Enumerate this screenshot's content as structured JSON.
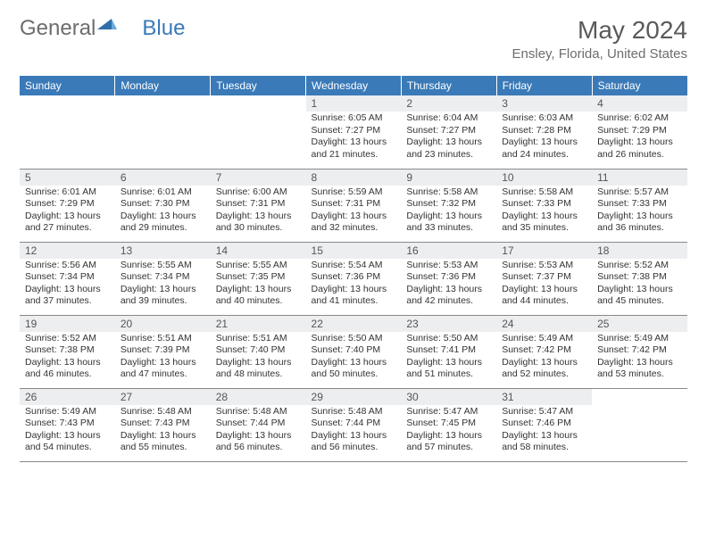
{
  "logo": {
    "text1": "General",
    "text2": "Blue"
  },
  "title": "May 2024",
  "location": "Ensley, Florida, United States",
  "colors": {
    "header_bg": "#3a7ab8",
    "header_text": "#ffffff",
    "daynum_bg": "#eceef0",
    "body_text": "#333333",
    "border": "#888888",
    "logo_grey": "#6d6d6d",
    "logo_blue": "#3a7ab8"
  },
  "columns": [
    "Sunday",
    "Monday",
    "Tuesday",
    "Wednesday",
    "Thursday",
    "Friday",
    "Saturday"
  ],
  "weeks": [
    {
      "days": [
        null,
        null,
        null,
        {
          "n": "1",
          "sunrise": "6:05 AM",
          "sunset": "7:27 PM",
          "daylight": "13 hours and 21 minutes."
        },
        {
          "n": "2",
          "sunrise": "6:04 AM",
          "sunset": "7:27 PM",
          "daylight": "13 hours and 23 minutes."
        },
        {
          "n": "3",
          "sunrise": "6:03 AM",
          "sunset": "7:28 PM",
          "daylight": "13 hours and 24 minutes."
        },
        {
          "n": "4",
          "sunrise": "6:02 AM",
          "sunset": "7:29 PM",
          "daylight": "13 hours and 26 minutes."
        }
      ]
    },
    {
      "days": [
        {
          "n": "5",
          "sunrise": "6:01 AM",
          "sunset": "7:29 PM",
          "daylight": "13 hours and 27 minutes."
        },
        {
          "n": "6",
          "sunrise": "6:01 AM",
          "sunset": "7:30 PM",
          "daylight": "13 hours and 29 minutes."
        },
        {
          "n": "7",
          "sunrise": "6:00 AM",
          "sunset": "7:31 PM",
          "daylight": "13 hours and 30 minutes."
        },
        {
          "n": "8",
          "sunrise": "5:59 AM",
          "sunset": "7:31 PM",
          "daylight": "13 hours and 32 minutes."
        },
        {
          "n": "9",
          "sunrise": "5:58 AM",
          "sunset": "7:32 PM",
          "daylight": "13 hours and 33 minutes."
        },
        {
          "n": "10",
          "sunrise": "5:58 AM",
          "sunset": "7:33 PM",
          "daylight": "13 hours and 35 minutes."
        },
        {
          "n": "11",
          "sunrise": "5:57 AM",
          "sunset": "7:33 PM",
          "daylight": "13 hours and 36 minutes."
        }
      ]
    },
    {
      "days": [
        {
          "n": "12",
          "sunrise": "5:56 AM",
          "sunset": "7:34 PM",
          "daylight": "13 hours and 37 minutes."
        },
        {
          "n": "13",
          "sunrise": "5:55 AM",
          "sunset": "7:34 PM",
          "daylight": "13 hours and 39 minutes."
        },
        {
          "n": "14",
          "sunrise": "5:55 AM",
          "sunset": "7:35 PM",
          "daylight": "13 hours and 40 minutes."
        },
        {
          "n": "15",
          "sunrise": "5:54 AM",
          "sunset": "7:36 PM",
          "daylight": "13 hours and 41 minutes."
        },
        {
          "n": "16",
          "sunrise": "5:53 AM",
          "sunset": "7:36 PM",
          "daylight": "13 hours and 42 minutes."
        },
        {
          "n": "17",
          "sunrise": "5:53 AM",
          "sunset": "7:37 PM",
          "daylight": "13 hours and 44 minutes."
        },
        {
          "n": "18",
          "sunrise": "5:52 AM",
          "sunset": "7:38 PM",
          "daylight": "13 hours and 45 minutes."
        }
      ]
    },
    {
      "days": [
        {
          "n": "19",
          "sunrise": "5:52 AM",
          "sunset": "7:38 PM",
          "daylight": "13 hours and 46 minutes."
        },
        {
          "n": "20",
          "sunrise": "5:51 AM",
          "sunset": "7:39 PM",
          "daylight": "13 hours and 47 minutes."
        },
        {
          "n": "21",
          "sunrise": "5:51 AM",
          "sunset": "7:40 PM",
          "daylight": "13 hours and 48 minutes."
        },
        {
          "n": "22",
          "sunrise": "5:50 AM",
          "sunset": "7:40 PM",
          "daylight": "13 hours and 50 minutes."
        },
        {
          "n": "23",
          "sunrise": "5:50 AM",
          "sunset": "7:41 PM",
          "daylight": "13 hours and 51 minutes."
        },
        {
          "n": "24",
          "sunrise": "5:49 AM",
          "sunset": "7:42 PM",
          "daylight": "13 hours and 52 minutes."
        },
        {
          "n": "25",
          "sunrise": "5:49 AM",
          "sunset": "7:42 PM",
          "daylight": "13 hours and 53 minutes."
        }
      ]
    },
    {
      "days": [
        {
          "n": "26",
          "sunrise": "5:49 AM",
          "sunset": "7:43 PM",
          "daylight": "13 hours and 54 minutes."
        },
        {
          "n": "27",
          "sunrise": "5:48 AM",
          "sunset": "7:43 PM",
          "daylight": "13 hours and 55 minutes."
        },
        {
          "n": "28",
          "sunrise": "5:48 AM",
          "sunset": "7:44 PM",
          "daylight": "13 hours and 56 minutes."
        },
        {
          "n": "29",
          "sunrise": "5:48 AM",
          "sunset": "7:44 PM",
          "daylight": "13 hours and 56 minutes."
        },
        {
          "n": "30",
          "sunrise": "5:47 AM",
          "sunset": "7:45 PM",
          "daylight": "13 hours and 57 minutes."
        },
        {
          "n": "31",
          "sunrise": "5:47 AM",
          "sunset": "7:46 PM",
          "daylight": "13 hours and 58 minutes."
        },
        null
      ]
    }
  ]
}
